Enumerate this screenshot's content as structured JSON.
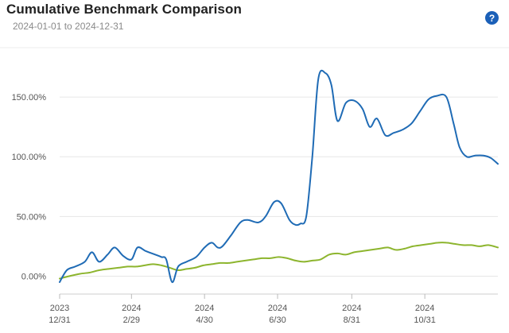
{
  "header": {
    "title": "Cumulative Benchmark Comparison",
    "date_range": "2024-01-01 to 2024-12-31",
    "help_label": "?"
  },
  "colors": {
    "series_primary": "#1f6bb5",
    "series_benchmark": "#8db52e",
    "grid": "#e6e6e6",
    "axis_text": "#555555",
    "help_button": "#1b60b8"
  },
  "chart_data": {
    "type": "line",
    "title": "Cumulative Benchmark Comparison",
    "subtitle": "2024-01-01 to 2024-12-31",
    "xlabel": "",
    "ylabel": "",
    "xlim": [
      "2023-12-31",
      "2024-12-31"
    ],
    "ylim": [
      -15,
      190
    ],
    "y_ticks": [
      0,
      50,
      100,
      150
    ],
    "y_tick_labels": [
      "0.00%",
      "50.00%",
      "100.00%",
      "150.00%"
    ],
    "x_ticks": [
      "2023-12-31",
      "2024-02-29",
      "2024-04-30",
      "2024-06-30",
      "2024-08-31",
      "2024-10-31"
    ],
    "x_tick_labels": [
      [
        "2023",
        "12/31"
      ],
      [
        "2024",
        "2/29"
      ],
      [
        "2024",
        "4/30"
      ],
      [
        "2024",
        "6/30"
      ],
      [
        "2024",
        "8/31"
      ],
      [
        "2024",
        "10/31"
      ]
    ],
    "grid": true,
    "legend": "none",
    "series": [
      {
        "color": "#1f6bb5",
        "x": [
          "2023-12-31",
          "2024-01-06",
          "2024-01-13",
          "2024-01-21",
          "2024-01-27",
          "2024-02-02",
          "2024-02-09",
          "2024-02-15",
          "2024-02-22",
          "2024-02-29",
          "2024-03-05",
          "2024-03-12",
          "2024-03-20",
          "2024-03-25",
          "2024-03-29",
          "2024-04-03",
          "2024-04-08",
          "2024-04-15",
          "2024-04-23",
          "2024-04-30",
          "2024-05-06",
          "2024-05-11",
          "2024-05-15",
          "2024-05-22",
          "2024-05-30",
          "2024-06-05",
          "2024-06-14",
          "2024-06-20",
          "2024-06-27",
          "2024-07-03",
          "2024-07-10",
          "2024-07-15",
          "2024-07-19",
          "2024-07-24",
          "2024-07-29",
          "2024-08-03",
          "2024-08-09",
          "2024-08-14",
          "2024-08-19",
          "2024-08-26",
          "2024-09-02",
          "2024-09-09",
          "2024-09-15",
          "2024-09-21",
          "2024-09-28",
          "2024-10-05",
          "2024-10-13",
          "2024-10-20",
          "2024-10-27",
          "2024-11-03",
          "2024-11-10",
          "2024-11-18",
          "2024-11-24",
          "2024-11-29",
          "2024-12-05",
          "2024-12-12",
          "2024-12-19",
          "2024-12-25",
          "2024-12-31"
        ],
        "y": [
          -5,
          5,
          8,
          12,
          20,
          12,
          18,
          24,
          17,
          14,
          24,
          21,
          18,
          16,
          14,
          -5,
          8,
          12,
          16,
          24,
          28,
          24,
          25,
          34,
          45,
          47,
          45,
          50,
          62,
          61,
          47,
          43,
          44,
          50,
          100,
          165,
          170,
          160,
          130,
          145,
          147,
          140,
          125,
          132,
          118,
          120,
          123,
          128,
          138,
          148,
          151,
          150,
          128,
          108,
          100,
          101,
          101,
          99,
          94
        ]
      },
      {
        "color": "#8db52e",
        "x": [
          "2023-12-31",
          "2024-01-08",
          "2024-01-17",
          "2024-01-25",
          "2024-02-02",
          "2024-02-10",
          "2024-02-18",
          "2024-02-26",
          "2024-03-04",
          "2024-03-11",
          "2024-03-18",
          "2024-03-25",
          "2024-04-01",
          "2024-04-08",
          "2024-04-15",
          "2024-04-22",
          "2024-04-29",
          "2024-05-06",
          "2024-05-13",
          "2024-05-20",
          "2024-05-27",
          "2024-06-03",
          "2024-06-10",
          "2024-06-17",
          "2024-06-24",
          "2024-07-01",
          "2024-07-08",
          "2024-07-15",
          "2024-07-22",
          "2024-07-29",
          "2024-08-05",
          "2024-08-12",
          "2024-08-19",
          "2024-08-26",
          "2024-09-02",
          "2024-09-09",
          "2024-09-16",
          "2024-09-23",
          "2024-09-30",
          "2024-10-07",
          "2024-10-14",
          "2024-10-21",
          "2024-10-28",
          "2024-11-04",
          "2024-11-11",
          "2024-11-18",
          "2024-11-25",
          "2024-12-02",
          "2024-12-09",
          "2024-12-16",
          "2024-12-23",
          "2024-12-31"
        ],
        "y": [
          -2,
          0,
          2,
          3,
          5,
          6,
          7,
          8,
          8,
          9,
          10,
          9,
          7,
          5,
          6,
          7,
          9,
          10,
          11,
          11,
          12,
          13,
          14,
          15,
          15,
          16,
          15,
          13,
          12,
          13,
          14,
          18,
          19,
          18,
          20,
          21,
          22,
          23,
          24,
          22,
          23,
          25,
          26,
          27,
          28,
          28,
          27,
          26,
          26,
          25,
          26,
          24
        ]
      }
    ]
  }
}
